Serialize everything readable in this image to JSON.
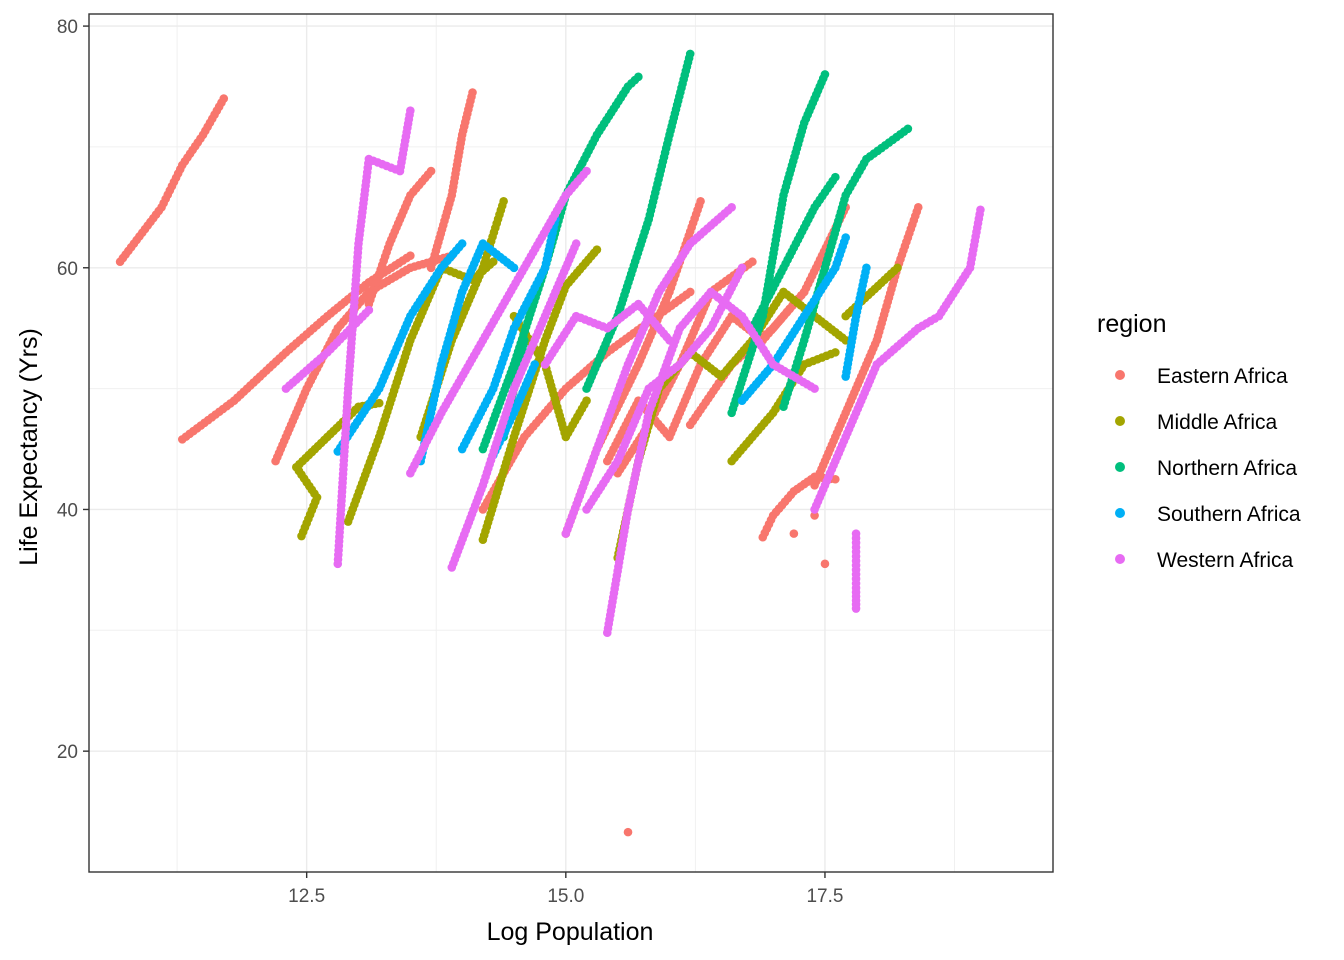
{
  "chart_data": {
    "type": "scatter",
    "title": "",
    "xlabel": "Log Population",
    "ylabel": "Life Expectancy (Yrs)",
    "xlim": [
      10.4,
      19.7
    ],
    "ylim": [
      10,
      81
    ],
    "x_ticks": [
      12.5,
      15.0,
      17.5
    ],
    "x_tick_labels": [
      "12.5",
      "15.0",
      "17.5"
    ],
    "y_ticks": [
      20,
      40,
      60,
      80
    ],
    "y_tick_labels": [
      "20",
      "40",
      "60",
      "80"
    ],
    "grid": true,
    "legend": {
      "title": "region",
      "placement": "right"
    },
    "series": [
      {
        "name": "Eastern Africa",
        "color": "#F8766D",
        "tracks": [
          [
            [
              10.7,
              60.5
            ],
            [
              11.1,
              65.0
            ],
            [
              11.3,
              68.5
            ],
            [
              11.5,
              71.0
            ],
            [
              11.7,
              74.0
            ]
          ],
          [
            [
              11.3,
              45.8
            ],
            [
              11.8,
              49.0
            ],
            [
              12.3,
              53.0
            ],
            [
              12.7,
              56.0
            ],
            [
              13.1,
              58.8
            ],
            [
              13.5,
              61.0
            ]
          ],
          [
            [
              12.2,
              44.0
            ],
            [
              12.5,
              50.0
            ],
            [
              12.8,
              55.0
            ],
            [
              13.1,
              58.0
            ],
            [
              13.5,
              60.0
            ],
            [
              13.9,
              61.0
            ]
          ],
          [
            [
              13.1,
              57.0
            ],
            [
              13.3,
              62.0
            ],
            [
              13.5,
              66.0
            ],
            [
              13.7,
              68.0
            ]
          ],
          [
            [
              13.7,
              60.0
            ],
            [
              13.9,
              66.0
            ],
            [
              14.0,
              71.0
            ],
            [
              14.1,
              74.5
            ]
          ],
          [
            [
              14.2,
              40.0
            ],
            [
              14.6,
              46.0
            ],
            [
              15.0,
              50.0
            ],
            [
              15.4,
              53.0
            ],
            [
              15.8,
              55.5
            ],
            [
              16.2,
              58.0
            ]
          ],
          [
            [
              15.0,
              38.0
            ],
            [
              15.3,
              45.0
            ],
            [
              15.7,
              52.0
            ],
            [
              16.0,
              58.0
            ],
            [
              16.3,
              65.5
            ]
          ],
          [
            [
              15.5,
              43.0
            ],
            [
              15.8,
              47.0
            ],
            [
              16.1,
              52.0
            ],
            [
              16.4,
              58.0
            ],
            [
              16.8,
              60.5
            ]
          ],
          [
            [
              15.4,
              44.0
            ],
            [
              15.7,
              49.0
            ],
            [
              16.0,
              46.0
            ],
            [
              16.3,
              52.0
            ],
            [
              16.6,
              56.0
            ],
            [
              16.9,
              54.0
            ],
            [
              17.3,
              58.0
            ]
          ],
          [
            [
              16.2,
              47.0
            ],
            [
              16.6,
              52.0
            ],
            [
              17.0,
              55.0
            ],
            [
              17.3,
              58.0
            ],
            [
              17.7,
              65.0
            ]
          ],
          [
            [
              17.4,
              42.0
            ],
            [
              17.7,
              48.0
            ],
            [
              18.0,
              54.0
            ],
            [
              18.2,
              60.0
            ],
            [
              18.4,
              65.0
            ]
          ],
          [
            [
              16.9,
              37.7
            ],
            [
              17.0,
              39.5
            ],
            [
              17.2,
              41.5
            ],
            [
              17.4,
              42.7
            ],
            [
              17.6,
              42.5
            ]
          ],
          [
            [
              15.6,
              13.3
            ]
          ],
          [
            [
              17.5,
              35.5
            ]
          ],
          [
            [
              17.4,
              39.5
            ]
          ],
          [
            [
              17.2,
              38.0
            ]
          ]
        ]
      },
      {
        "name": "Middle Africa",
        "color": "#A3A500",
        "tracks": [
          [
            [
              12.45,
              37.8
            ],
            [
              12.6,
              41.0
            ],
            [
              12.4,
              43.5
            ],
            [
              12.7,
              46.0
            ],
            [
              13.0,
              48.5
            ],
            [
              13.2,
              48.8
            ]
          ],
          [
            [
              12.9,
              39.0
            ],
            [
              13.2,
              46.0
            ],
            [
              13.5,
              54.0
            ],
            [
              13.8,
              60.0
            ],
            [
              14.1,
              59.0
            ],
            [
              14.3,
              60.5
            ]
          ],
          [
            [
              13.6,
              46.0
            ],
            [
              13.9,
              54.0
            ],
            [
              14.2,
              60.0
            ],
            [
              14.4,
              65.5
            ]
          ],
          [
            [
              14.2,
              37.5
            ],
            [
              14.5,
              46.0
            ],
            [
              14.8,
              54.0
            ],
            [
              15.0,
              58.5
            ],
            [
              15.3,
              61.5
            ]
          ],
          [
            [
              15.5,
              36.0
            ],
            [
              15.7,
              44.0
            ],
            [
              15.9,
              50.0
            ],
            [
              16.2,
              53.0
            ],
            [
              16.5,
              51.0
            ],
            [
              16.8,
              54.0
            ],
            [
              17.1,
              58.0
            ],
            [
              17.4,
              56.0
            ],
            [
              17.7,
              54.0
            ]
          ],
          [
            [
              16.6,
              44.0
            ],
            [
              17.0,
              48.0
            ],
            [
              17.3,
              52.0
            ],
            [
              17.6,
              53.0
            ]
          ],
          [
            [
              17.7,
              56.0
            ],
            [
              17.95,
              58.0
            ],
            [
              18.2,
              60.0
            ]
          ],
          [
            [
              14.5,
              56.0
            ],
            [
              14.8,
              52.0
            ],
            [
              15.0,
              46.0
            ],
            [
              15.2,
              49.0
            ]
          ]
        ]
      },
      {
        "name": "Northern Africa",
        "color": "#00BF7D",
        "tracks": [
          [
            [
              14.2,
              45.0
            ],
            [
              14.5,
              52.0
            ],
            [
              14.8,
              60.0
            ],
            [
              15.0,
              66.0
            ],
            [
              15.3,
              71.0
            ],
            [
              15.6,
              75.0
            ],
            [
              15.7,
              75.8
            ]
          ],
          [
            [
              15.2,
              50.0
            ],
            [
              15.5,
              56.0
            ],
            [
              15.8,
              64.0
            ],
            [
              16.0,
              71.0
            ],
            [
              16.2,
              77.7
            ]
          ],
          [
            [
              16.6,
              48.0
            ],
            [
              16.9,
              56.0
            ],
            [
              17.1,
              66.0
            ],
            [
              17.3,
              72.0
            ],
            [
              17.5,
              76.0
            ]
          ],
          [
            [
              17.1,
              48.5
            ],
            [
              17.3,
              54.0
            ],
            [
              17.5,
              60.0
            ],
            [
              17.7,
              66.0
            ],
            [
              17.9,
              69.0
            ],
            [
              18.3,
              71.5
            ]
          ],
          [
            [
              14.4,
              46.0
            ],
            [
              14.5,
              50.0
            ],
            [
              14.6,
              54.0
            ]
          ],
          [
            [
              16.8,
              55.0
            ],
            [
              17.1,
              60.0
            ],
            [
              17.4,
              65.0
            ],
            [
              17.6,
              67.5
            ]
          ]
        ]
      },
      {
        "name": "Southern Africa",
        "color": "#00B0F6",
        "tracks": [
          [
            [
              12.8,
              44.8
            ],
            [
              13.2,
              50.0
            ],
            [
              13.5,
              56.0
            ],
            [
              13.8,
              60.0
            ],
            [
              14.0,
              62.0
            ]
          ],
          [
            [
              13.6,
              44.0
            ],
            [
              13.8,
              52.0
            ],
            [
              14.0,
              58.0
            ],
            [
              14.2,
              62.0
            ],
            [
              14.5,
              60.0
            ]
          ],
          [
            [
              14.0,
              45.0
            ],
            [
              14.3,
              50.0
            ],
            [
              14.5,
              55.0
            ],
            [
              14.8,
              60.0
            ],
            [
              14.9,
              64.0
            ]
          ],
          [
            [
              14.3,
              44.5
            ],
            [
              14.5,
              48.0
            ],
            [
              14.7,
              52.0
            ]
          ],
          [
            [
              16.7,
              49.0
            ],
            [
              17.0,
              52.0
            ],
            [
              17.3,
              56.0
            ],
            [
              17.6,
              60.0
            ],
            [
              17.7,
              62.5
            ]
          ],
          [
            [
              17.7,
              51.0
            ],
            [
              17.8,
              56.0
            ],
            [
              17.9,
              60.0
            ]
          ]
        ]
      },
      {
        "name": "Western Africa",
        "color": "#E76BF3",
        "tracks": [
          [
            [
              12.8,
              35.5
            ],
            [
              12.9,
              50.0
            ],
            [
              13.0,
              62.0
            ],
            [
              13.1,
              69.0
            ],
            [
              13.4,
              68.0
            ],
            [
              13.5,
              73.0
            ]
          ],
          [
            [
              12.3,
              50.0
            ],
            [
              12.7,
              53.0
            ],
            [
              13.1,
              56.5
            ]
          ],
          [
            [
              13.5,
              43.0
            ],
            [
              13.8,
              48.0
            ],
            [
              14.2,
              54.0
            ],
            [
              14.6,
              60.0
            ],
            [
              15.0,
              66.0
            ],
            [
              15.2,
              68.0
            ]
          ],
          [
            [
              13.9,
              35.2
            ],
            [
              14.2,
              42.0
            ],
            [
              14.5,
              50.0
            ],
            [
              14.8,
              56.0
            ],
            [
              15.1,
              62.0
            ]
          ],
          [
            [
              15.0,
              38.0
            ],
            [
              15.3,
              45.0
            ],
            [
              15.6,
              52.0
            ],
            [
              15.9,
              58.0
            ],
            [
              16.2,
              62.0
            ],
            [
              16.6,
              65.0
            ]
          ],
          [
            [
              15.4,
              29.8
            ],
            [
              15.6,
              40.0
            ],
            [
              15.8,
              48.0
            ],
            [
              16.1,
              55.0
            ],
            [
              16.4,
              58.0
            ],
            [
              16.7,
              56.0
            ],
            [
              17.0,
              52.0
            ],
            [
              17.4,
              50.0
            ]
          ],
          [
            [
              17.4,
              40.0
            ],
            [
              17.7,
              46.0
            ],
            [
              18.0,
              52.0
            ],
            [
              18.4,
              55.0
            ],
            [
              18.6,
              56.0
            ],
            [
              18.9,
              60.0
            ],
            [
              19.0,
              64.8
            ]
          ],
          [
            [
              17.8,
              31.8
            ],
            [
              17.8,
              33.5
            ],
            [
              17.8,
              38.0
            ]
          ],
          [
            [
              14.8,
              52.0
            ],
            [
              15.1,
              56.0
            ],
            [
              15.4,
              55.0
            ],
            [
              15.7,
              57.0
            ],
            [
              16.0,
              54.0
            ]
          ],
          [
            [
              15.2,
              40.0
            ],
            [
              15.5,
              44.0
            ],
            [
              15.8,
              50.0
            ],
            [
              16.1,
              52.0
            ],
            [
              16.4,
              55.0
            ],
            [
              16.7,
              60.0
            ]
          ]
        ]
      }
    ]
  }
}
